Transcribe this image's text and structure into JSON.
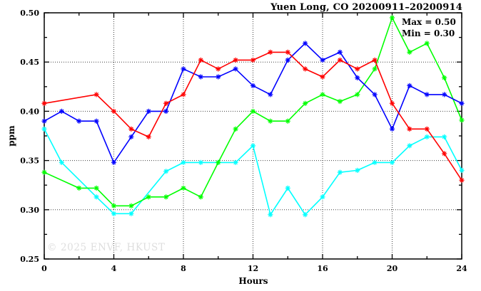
{
  "watermark": "© 2025 ENVF, HKUST",
  "chart_data": {
    "type": "line",
    "title": "Yuen Long, CO 20200911–20200914",
    "xlabel": "Hours",
    "ylabel": "ppm",
    "xlim": [
      0,
      24
    ],
    "ylim": [
      0.25,
      0.5
    ],
    "x_tick_labels": [
      "0",
      "4",
      "8",
      "12",
      "16",
      "20",
      "24"
    ],
    "x_major_ticks": [
      0,
      4,
      8,
      12,
      16,
      20,
      24
    ],
    "x_minor_ticks": [
      2,
      6,
      10,
      14,
      18,
      22
    ],
    "y_tick_labels": [
      "0.25",
      "0.30",
      "0.35",
      "0.40",
      "0.45",
      "0.50"
    ],
    "y_major_ticks": [
      0.25,
      0.3,
      0.35,
      0.4,
      0.45,
      0.5
    ],
    "y_minor_ticks": [
      0.275,
      0.325,
      0.375,
      0.425,
      0.475
    ],
    "x_grid": [
      4,
      8,
      12,
      16,
      20
    ],
    "y_grid": [
      0.3,
      0.35,
      0.4,
      0.45
    ],
    "grid": true,
    "legend_position": "none",
    "marker": "asterisk",
    "annotations": {
      "max_label": "Max = 0.50",
      "min_label": "Min = 0.30"
    },
    "colors": {
      "frame": "#000000",
      "grid": "#404040",
      "watermark": "#dedede"
    },
    "x": [
      0,
      1,
      2,
      3,
      4,
      5,
      6,
      7,
      8,
      9,
      10,
      11,
      12,
      13,
      14,
      15,
      16,
      17,
      18,
      19,
      20,
      21,
      22,
      23,
      24
    ],
    "series": [
      {
        "name": "cyan",
        "color": "#00ffff",
        "values": [
          0.382,
          0.348,
          null,
          0.313,
          0.296,
          0.296,
          null,
          0.339,
          0.348,
          0.348,
          0.348,
          0.348,
          0.365,
          0.295,
          0.322,
          0.295,
          0.313,
          0.338,
          0.34,
          0.348,
          0.348,
          0.365,
          0.374,
          0.374,
          0.34
        ]
      },
      {
        "name": "green",
        "color": "#00ff00",
        "values": [
          0.338,
          null,
          0.322,
          0.322,
          0.304,
          0.304,
          0.313,
          0.313,
          0.322,
          0.313,
          0.348,
          0.382,
          0.4,
          0.39,
          0.39,
          0.408,
          0.417,
          0.41,
          0.417,
          0.443,
          0.495,
          0.46,
          0.469,
          0.434,
          0.391
        ]
      },
      {
        "name": "blue",
        "color": "#0000ff",
        "values": [
          0.39,
          0.4,
          0.39,
          0.39,
          0.348,
          0.374,
          0.4,
          0.4,
          0.443,
          0.435,
          0.435,
          0.443,
          0.426,
          0.417,
          0.452,
          0.469,
          0.452,
          0.46,
          0.434,
          0.417,
          0.382,
          0.426,
          0.417,
          0.417,
          0.408
        ]
      },
      {
        "name": "red",
        "color": "#ff0000",
        "values": [
          0.408,
          null,
          null,
          0.417,
          0.4,
          0.382,
          0.374,
          0.408,
          0.417,
          0.452,
          0.443,
          0.452,
          0.452,
          0.46,
          0.46,
          0.443,
          0.435,
          0.452,
          0.443,
          0.452,
          0.408,
          0.382,
          0.382,
          0.357,
          0.33
        ]
      }
    ]
  }
}
